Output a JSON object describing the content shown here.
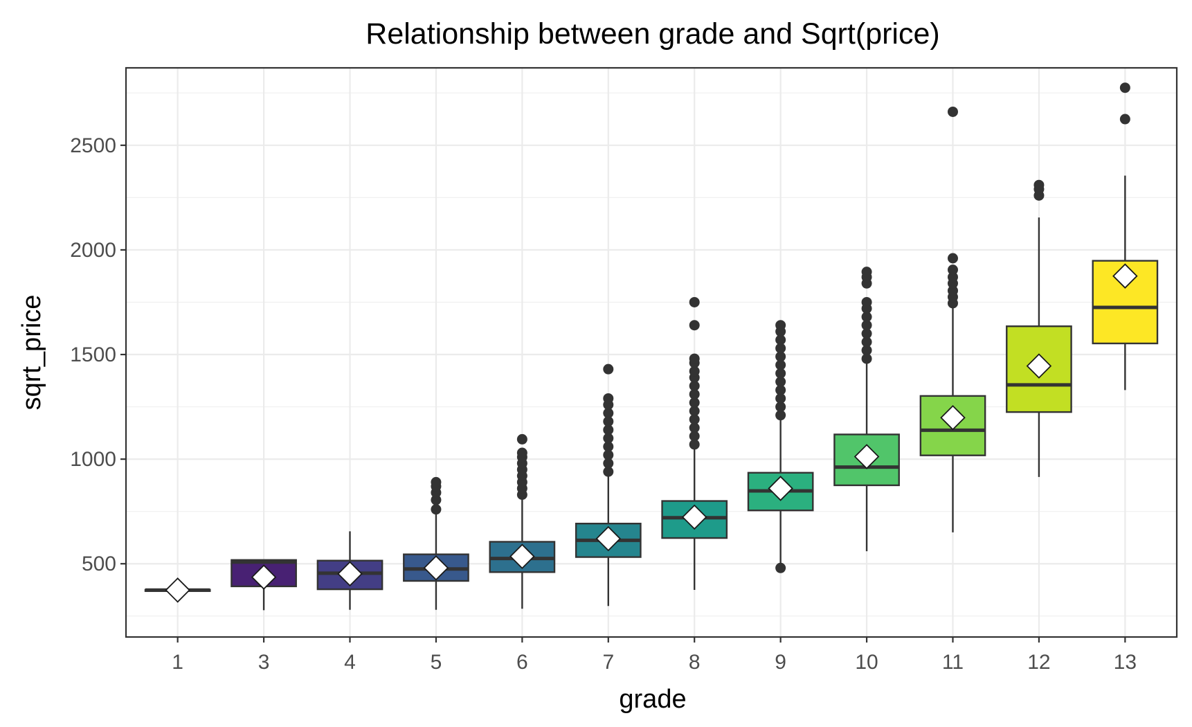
{
  "chart_data": {
    "type": "boxplot",
    "title": "Relationship between grade and Sqrt(price)",
    "xlabel": "grade",
    "ylabel": "sqrt_price",
    "ylim": [
      150,
      2870
    ],
    "yticks": [
      500,
      1000,
      1500,
      2000,
      2500
    ],
    "grid": true,
    "legend": "none",
    "categories": [
      "1",
      "3",
      "4",
      "5",
      "6",
      "7",
      "8",
      "9",
      "10",
      "11",
      "12",
      "13"
    ],
    "colors": [
      "#440154",
      "#482173",
      "#433E85",
      "#38598C",
      "#2D708E",
      "#25858E",
      "#1E9B8A",
      "#2BB07F",
      "#51C56A",
      "#85D54A",
      "#C2DF23",
      "#FDE725"
    ],
    "boxes": [
      {
        "grade": "1",
        "q1": 372,
        "median": 374,
        "q3": 376,
        "whisker_low": 372,
        "whisker_high": 376,
        "mean": 374,
        "outliers": []
      },
      {
        "grade": "3",
        "q1": 392,
        "median": 508,
        "q3": 518,
        "whisker_low": 278,
        "whisker_high": 518,
        "mean": 436,
        "outliers": []
      },
      {
        "grade": "4",
        "q1": 378,
        "median": 455,
        "q3": 515,
        "whisker_low": 280,
        "whisker_high": 655,
        "mean": 452,
        "outliers": []
      },
      {
        "grade": "5",
        "q1": 418,
        "median": 475,
        "q3": 545,
        "whisker_low": 280,
        "whisker_high": 740,
        "mean": 480,
        "outliers": [
          760,
          805,
          840,
          870,
          890
        ]
      },
      {
        "grade": "6",
        "q1": 460,
        "median": 525,
        "q3": 605,
        "whisker_low": 285,
        "whisker_high": 820,
        "mean": 535,
        "outliers": [
          830,
          860,
          890,
          920,
          950,
          980,
          1010,
          1030,
          1095
        ]
      },
      {
        "grade": "7",
        "q1": 532,
        "median": 612,
        "q3": 692,
        "whisker_low": 298,
        "whisker_high": 930,
        "mean": 620,
        "outliers": [
          940,
          980,
          1020,
          1060,
          1100,
          1140,
          1180,
          1220,
          1260,
          1290,
          1430
        ]
      },
      {
        "grade": "8",
        "q1": 623,
        "median": 720,
        "q3": 800,
        "whisker_low": 375,
        "whisker_high": 1060,
        "mean": 723,
        "outliers": [
          1070,
          1110,
          1150,
          1190,
          1230,
          1270,
          1310,
          1350,
          1390,
          1420,
          1460,
          1480,
          1640,
          1750
        ]
      },
      {
        "grade": "9",
        "q1": 755,
        "median": 848,
        "q3": 935,
        "whisker_low": 480,
        "whisker_high": 1200,
        "mean": 860,
        "outliers": [
          480,
          1210,
          1250,
          1290,
          1330,
          1370,
          1410,
          1450,
          1490,
          1530,
          1570,
          1610,
          1640
        ]
      },
      {
        "grade": "10",
        "q1": 875,
        "median": 962,
        "q3": 1118,
        "whisker_low": 560,
        "whisker_high": 1460,
        "mean": 1012,
        "outliers": [
          1480,
          1520,
          1560,
          1600,
          1640,
          1680,
          1720,
          1750,
          1840,
          1870,
          1895
        ]
      },
      {
        "grade": "11",
        "q1": 1018,
        "median": 1138,
        "q3": 1302,
        "whisker_low": 650,
        "whisker_high": 1730,
        "mean": 1198,
        "outliers": [
          1745,
          1775,
          1805,
          1840,
          1870,
          1905,
          1960,
          2660
        ]
      },
      {
        "grade": "12",
        "q1": 1225,
        "median": 1355,
        "q3": 1635,
        "whisker_low": 915,
        "whisker_high": 2155,
        "mean": 1445,
        "outliers": [
          2260,
          2290,
          2310
        ]
      },
      {
        "grade": "13",
        "q1": 1553,
        "median": 1725,
        "q3": 1948,
        "whisker_low": 1330,
        "whisker_high": 2355,
        "mean": 1875,
        "outliers": [
          2625,
          2775
        ]
      }
    ]
  }
}
